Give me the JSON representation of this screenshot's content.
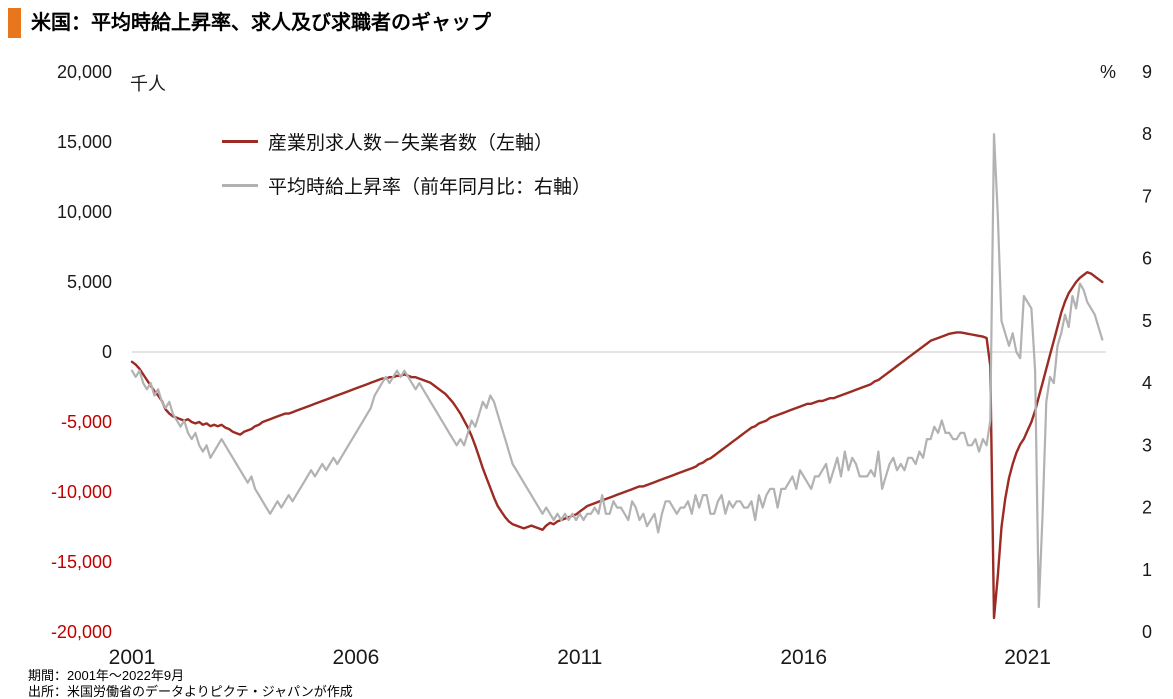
{
  "header": {
    "title": "米国：平均時給上昇率、求人及び求職者のギャップ",
    "accent_color": "#e8761d"
  },
  "footer": {
    "line1": "期間：2001年～2022年9月",
    "line2": "出所：米国労働省のデータよりピクテ・ジャパンが作成"
  },
  "chart_data": {
    "type": "line",
    "title": "米国：平均時給上昇率、求人及び求職者のギャップ",
    "grid": "zero-line-only",
    "zero_line_color": "#c9c9c9",
    "legend_position": "top-left-inside",
    "x_axis": {
      "min": 2001,
      "max": 2022.75,
      "frequency": "monthly",
      "start": "2001-01",
      "end": "2022-09",
      "tick_values": [
        2001,
        2006,
        2011,
        2016,
        2021
      ],
      "tick_labels": [
        "2001",
        "2006",
        "2011",
        "2016",
        "2021"
      ]
    },
    "left_axis": {
      "unit_label": "千人",
      "min": -20000,
      "max": 20000,
      "tick_values": [
        20000,
        15000,
        10000,
        5000,
        0,
        -5000,
        -10000,
        -15000,
        -20000
      ],
      "tick_labels": [
        "20,000",
        "15,000",
        "10,000",
        "5,000",
        "0",
        "-5,000",
        "-10,000",
        "-15,000",
        "-20,000"
      ],
      "label_color": "#1a1a1a",
      "negative_label_color": "#c00000"
    },
    "right_axis": {
      "unit_label": "%",
      "min": 0,
      "max": 9,
      "tick_values": [
        9,
        8,
        7,
        6,
        5,
        4,
        3,
        2,
        1,
        0
      ],
      "tick_labels": [
        "9",
        "8",
        "7",
        "6",
        "5",
        "4",
        "3",
        "2",
        "1",
        "0"
      ],
      "label_color": "#1a1a1a"
    },
    "series": [
      {
        "name": "産業別求人数－失業者数（左軸）",
        "axis": "left",
        "color": "#9c2b23",
        "width": 2.4,
        "values": [
          -700,
          -900,
          -1200,
          -1600,
          -2000,
          -2400,
          -2800,
          -3100,
          -3500,
          -4100,
          -4400,
          -4600,
          -4700,
          -4800,
          -4900,
          -4800,
          -5000,
          -5100,
          -5000,
          -5200,
          -5100,
          -5300,
          -5200,
          -5300,
          -5200,
          -5400,
          -5500,
          -5700,
          -5800,
          -5900,
          -5700,
          -5600,
          -5500,
          -5300,
          -5200,
          -5000,
          -4900,
          -4800,
          -4700,
          -4600,
          -4500,
          -4400,
          -4400,
          -4300,
          -4200,
          -4100,
          -4000,
          -3900,
          -3800,
          -3700,
          -3600,
          -3500,
          -3400,
          -3300,
          -3200,
          -3100,
          -3000,
          -2900,
          -2800,
          -2700,
          -2600,
          -2500,
          -2400,
          -2300,
          -2200,
          -2100,
          -2000,
          -1900,
          -1900,
          -1800,
          -1800,
          -1700,
          -1700,
          -1600,
          -1700,
          -1800,
          -1800,
          -1900,
          -2000,
          -2100,
          -2200,
          -2400,
          -2600,
          -2800,
          -3000,
          -3300,
          -3600,
          -4000,
          -4400,
          -4900,
          -5400,
          -6000,
          -6700,
          -7500,
          -8300,
          -9000,
          -9700,
          -10400,
          -11000,
          -11400,
          -11800,
          -12100,
          -12300,
          -12400,
          -12500,
          -12600,
          -12500,
          -12400,
          -12500,
          -12600,
          -12700,
          -12400,
          -12200,
          -12300,
          -12100,
          -12000,
          -11900,
          -11800,
          -11700,
          -11600,
          -11400,
          -11200,
          -11000,
          -10900,
          -10800,
          -10700,
          -10600,
          -10500,
          -10400,
          -10300,
          -10200,
          -10100,
          -10000,
          -9900,
          -9800,
          -9700,
          -9600,
          -9600,
          -9500,
          -9400,
          -9300,
          -9200,
          -9100,
          -9000,
          -8900,
          -8800,
          -8700,
          -8600,
          -8500,
          -8400,
          -8300,
          -8200,
          -8000,
          -7900,
          -7700,
          -7600,
          -7400,
          -7200,
          -7000,
          -6800,
          -6600,
          -6400,
          -6200,
          -6000,
          -5800,
          -5600,
          -5400,
          -5300,
          -5100,
          -5000,
          -4900,
          -4700,
          -4600,
          -4500,
          -4400,
          -4300,
          -4200,
          -4100,
          -4000,
          -3900,
          -3800,
          -3700,
          -3700,
          -3600,
          -3500,
          -3500,
          -3400,
          -3300,
          -3300,
          -3200,
          -3100,
          -3000,
          -2900,
          -2800,
          -2700,
          -2600,
          -2500,
          -2400,
          -2300,
          -2100,
          -2000,
          -1800,
          -1600,
          -1400,
          -1200,
          -1000,
          -800,
          -600,
          -400,
          -200,
          0,
          200,
          400,
          600,
          800,
          900,
          1000,
          1100,
          1200,
          1300,
          1350,
          1400,
          1400,
          1350,
          1300,
          1250,
          1200,
          1150,
          1100,
          1000,
          -1000,
          -19000,
          -16000,
          -12500,
          -10500,
          -9000,
          -8000,
          -7200,
          -6600,
          -6200,
          -5600,
          -5000,
          -4200,
          -3200,
          -2200,
          -1200,
          -200,
          800,
          1800,
          2800,
          3600,
          4200,
          4600,
          5000,
          5300,
          5500,
          5700,
          5600,
          5400,
          5200,
          5000
        ]
      },
      {
        "name": "平均時給上昇率（前年同月比：右軸）",
        "axis": "right",
        "color": "#b2b2b2",
        "width": 2.2,
        "values": [
          4.2,
          4.1,
          4.2,
          4.0,
          3.9,
          4.0,
          3.8,
          3.9,
          3.7,
          3.6,
          3.7,
          3.5,
          3.4,
          3.3,
          3.4,
          3.2,
          3.1,
          3.2,
          3.0,
          2.9,
          3.0,
          2.8,
          2.9,
          3.0,
          3.1,
          3.0,
          2.9,
          2.8,
          2.7,
          2.6,
          2.5,
          2.4,
          2.5,
          2.3,
          2.2,
          2.1,
          2.0,
          1.9,
          2.0,
          2.1,
          2.0,
          2.1,
          2.2,
          2.1,
          2.2,
          2.3,
          2.4,
          2.5,
          2.6,
          2.5,
          2.6,
          2.7,
          2.6,
          2.7,
          2.8,
          2.7,
          2.8,
          2.9,
          3.0,
          3.1,
          3.2,
          3.3,
          3.4,
          3.5,
          3.6,
          3.8,
          3.9,
          4.0,
          4.1,
          4.0,
          4.1,
          4.2,
          4.1,
          4.2,
          4.1,
          4.0,
          3.9,
          4.0,
          3.9,
          3.8,
          3.7,
          3.6,
          3.5,
          3.4,
          3.3,
          3.2,
          3.1,
          3.0,
          3.1,
          3.0,
          3.2,
          3.4,
          3.3,
          3.5,
          3.7,
          3.6,
          3.8,
          3.7,
          3.5,
          3.3,
          3.1,
          2.9,
          2.7,
          2.6,
          2.5,
          2.4,
          2.3,
          2.2,
          2.1,
          2.0,
          1.9,
          2.0,
          1.9,
          1.8,
          1.9,
          1.8,
          1.9,
          1.8,
          1.9,
          1.8,
          1.9,
          1.8,
          1.9,
          1.9,
          2.0,
          1.9,
          2.2,
          1.9,
          1.9,
          2.1,
          2.0,
          2.0,
          1.9,
          1.8,
          2.1,
          2.0,
          1.8,
          1.9,
          1.7,
          1.8,
          1.9,
          1.6,
          1.9,
          2.1,
          2.1,
          2.0,
          1.9,
          2.0,
          2.0,
          2.1,
          1.9,
          2.2,
          2.0,
          2.2,
          2.2,
          1.9,
          1.9,
          2.1,
          2.2,
          1.9,
          2.1,
          2.0,
          2.1,
          2.1,
          2.0,
          2.0,
          2.1,
          1.8,
          2.2,
          2.0,
          2.2,
          2.3,
          2.3,
          2.0,
          2.3,
          2.3,
          2.4,
          2.5,
          2.3,
          2.6,
          2.5,
          2.4,
          2.3,
          2.5,
          2.5,
          2.6,
          2.7,
          2.4,
          2.6,
          2.8,
          2.5,
          2.9,
          2.6,
          2.8,
          2.7,
          2.5,
          2.5,
          2.5,
          2.6,
          2.5,
          2.9,
          2.3,
          2.5,
          2.7,
          2.8,
          2.6,
          2.7,
          2.6,
          2.8,
          2.8,
          2.7,
          2.9,
          2.8,
          3.1,
          3.1,
          3.3,
          3.2,
          3.4,
          3.2,
          3.2,
          3.1,
          3.1,
          3.2,
          3.2,
          3.0,
          3.0,
          3.1,
          2.9,
          3.1,
          3.0,
          3.4,
          8.0,
          6.7,
          5.0,
          4.8,
          4.6,
          4.8,
          4.5,
          4.4,
          5.4,
          5.3,
          5.2,
          4.2,
          0.4,
          1.9,
          3.7,
          4.1,
          4.0,
          4.6,
          4.8,
          5.1,
          4.9,
          5.4,
          5.2,
          5.6,
          5.5,
          5.3,
          5.2,
          5.1,
          4.9,
          4.7
        ]
      }
    ]
  }
}
